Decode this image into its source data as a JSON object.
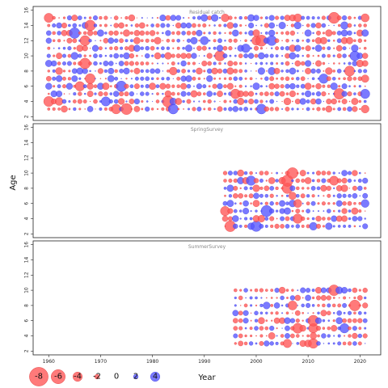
{
  "chart_data": {
    "type": "scatter",
    "subtype": "residual-bubble",
    "xlabel": "Year",
    "ylabel": "Age",
    "xlim": [
      1957,
      2024
    ],
    "ylim": [
      1.5,
      16.5
    ],
    "x_ticks": [
      1960,
      1970,
      1980,
      1990,
      2000,
      2010,
      2020
    ],
    "y_ticks": [
      2,
      4,
      6,
      8,
      10,
      12,
      14,
      16
    ],
    "colors": {
      "positive": "#5555ff",
      "negative": "#ff5555"
    },
    "panels": [
      {
        "title": "Residual catch",
        "year_start": 1960,
        "year_end": 2021,
        "age_start": 3,
        "age_end": 15
      },
      {
        "title": "SpringSurvey",
        "year_start": 1994,
        "year_end": 2021,
        "age_start": 3,
        "age_end": 10
      },
      {
        "title": "SummerSurvey",
        "year_start": 1996,
        "year_end": 2021,
        "age_start": 3,
        "age_end": 10
      }
    ],
    "legend": {
      "items": [
        {
          "label": "-8",
          "value": -8
        },
        {
          "label": "-6",
          "value": -6
        },
        {
          "label": "-4",
          "value": -4
        },
        {
          "label": "-2",
          "value": -2
        },
        {
          "label": "0",
          "value": 0
        },
        {
          "label": "2",
          "value": 2
        },
        {
          "label": "4",
          "value": 4
        }
      ]
    }
  }
}
